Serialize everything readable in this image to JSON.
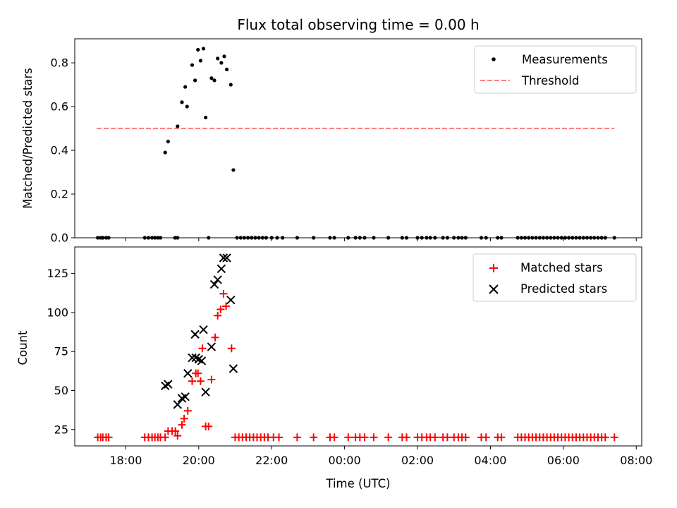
{
  "chart_data": [
    {
      "type": "scatter",
      "title": "Flux total observing time = 0.00 h",
      "ylabel": "Matched/Predicted stars",
      "ylim": [
        0.0,
        0.91
      ],
      "yticks": [
        "0.0",
        "0.2",
        "0.4",
        "0.6",
        "0.8"
      ],
      "ytick_values": [
        0,
        0.2,
        0.4,
        0.6,
        0.8
      ],
      "xlim_hours": [
        16.6,
        32.15
      ],
      "legend": {
        "placement": "top-right",
        "entries": [
          "Measurements",
          "Threshold"
        ]
      },
      "threshold": {
        "name": "Threshold",
        "value": 0.5,
        "x_range_hours": [
          17.2,
          31.4
        ],
        "color": "#ff7f7f"
      },
      "series": [
        {
          "name": "Measurements",
          "color": "#000000",
          "points": [
            [
              17.23,
              0
            ],
            [
              17.31,
              0
            ],
            [
              17.37,
              0
            ],
            [
              17.46,
              0
            ],
            [
              17.53,
              0
            ],
            [
              18.52,
              0
            ],
            [
              18.62,
              0
            ],
            [
              18.72,
              0
            ],
            [
              18.8,
              0
            ],
            [
              18.88,
              0
            ],
            [
              18.95,
              0
            ],
            [
              19.08,
              0.39
            ],
            [
              19.16,
              0.44
            ],
            [
              19.42,
              0.51
            ],
            [
              19.54,
              0.62
            ],
            [
              19.63,
              0.69
            ],
            [
              19.68,
              0.6
            ],
            [
              19.82,
              0.79
            ],
            [
              19.9,
              0.72
            ],
            [
              19.98,
              0.86
            ],
            [
              20.05,
              0.81
            ],
            [
              20.13,
              0.865
            ],
            [
              20.19,
              0.55
            ],
            [
              20.35,
              0.73
            ],
            [
              20.43,
              0.72
            ],
            [
              20.52,
              0.82
            ],
            [
              20.62,
              0.8
            ],
            [
              20.7,
              0.83
            ],
            [
              20.77,
              0.77
            ],
            [
              20.88,
              0.7
            ],
            [
              20.95,
              0.31
            ],
            [
              19.35,
              0
            ],
            [
              19.42,
              0
            ],
            [
              20.27,
              0
            ],
            [
              21.05,
              0
            ],
            [
              21.15,
              0
            ],
            [
              21.25,
              0
            ],
            [
              21.35,
              0
            ],
            [
              21.45,
              0
            ],
            [
              21.55,
              0
            ],
            [
              21.65,
              0
            ],
            [
              21.75,
              0
            ],
            [
              21.85,
              0
            ],
            [
              22.0,
              0
            ],
            [
              22.15,
              0
            ],
            [
              22.3,
              0
            ],
            [
              22.7,
              0
            ],
            [
              23.15,
              0
            ],
            [
              23.6,
              0
            ],
            [
              23.72,
              0
            ],
            [
              24.1,
              0
            ],
            [
              24.3,
              0
            ],
            [
              24.42,
              0
            ],
            [
              24.55,
              0
            ],
            [
              24.8,
              0
            ],
            [
              25.2,
              0
            ],
            [
              25.58,
              0
            ],
            [
              25.7,
              0
            ],
            [
              26.0,
              0
            ],
            [
              26.12,
              0
            ],
            [
              26.25,
              0
            ],
            [
              26.35,
              0
            ],
            [
              26.48,
              0
            ],
            [
              26.7,
              0
            ],
            [
              26.82,
              0
            ],
            [
              27.0,
              0
            ],
            [
              27.12,
              0
            ],
            [
              27.22,
              0
            ],
            [
              27.32,
              0
            ],
            [
              27.75,
              0
            ],
            [
              27.88,
              0
            ],
            [
              28.2,
              0
            ],
            [
              28.3,
              0
            ],
            [
              28.75,
              0
            ],
            [
              28.85,
              0
            ],
            [
              28.95,
              0
            ],
            [
              29.05,
              0
            ],
            [
              29.15,
              0
            ],
            [
              29.25,
              0
            ],
            [
              29.35,
              0
            ],
            [
              29.45,
              0
            ],
            [
              29.55,
              0
            ],
            [
              29.65,
              0
            ],
            [
              29.75,
              0
            ],
            [
              29.85,
              0
            ],
            [
              29.95,
              0
            ],
            [
              30.05,
              0
            ],
            [
              30.15,
              0
            ],
            [
              30.25,
              0
            ],
            [
              30.35,
              0
            ],
            [
              30.45,
              0
            ],
            [
              30.55,
              0
            ],
            [
              30.65,
              0
            ],
            [
              30.75,
              0
            ],
            [
              30.85,
              0
            ],
            [
              30.95,
              0
            ],
            [
              31.05,
              0
            ],
            [
              31.15,
              0
            ],
            [
              31.4,
              0
            ]
          ]
        }
      ]
    },
    {
      "type": "scatter",
      "xlabel": "Time (UTC)",
      "ylabel": "Count",
      "ylim": [
        14.5,
        142
      ],
      "yticks": [
        "25",
        "50",
        "75",
        "100",
        "125"
      ],
      "ytick_values": [
        25,
        50,
        75,
        100,
        125
      ],
      "xlim_hours": [
        16.6,
        32.15
      ],
      "xticks": [
        "18:00",
        "20:00",
        "22:00",
        "00:00",
        "02:00",
        "04:00",
        "06:00",
        "08:00"
      ],
      "xtick_hours": [
        18,
        20,
        22,
        24,
        26,
        28,
        30,
        32
      ],
      "legend": {
        "placement": "top-right",
        "entries": [
          "Matched stars",
          "Predicted stars"
        ]
      },
      "series": [
        {
          "name": "Matched stars",
          "marker": "plus",
          "color": "#ff0000",
          "points": [
            [
              17.23,
              20
            ],
            [
              17.31,
              20
            ],
            [
              17.37,
              20
            ],
            [
              17.46,
              20
            ],
            [
              17.53,
              20
            ],
            [
              18.52,
              20
            ],
            [
              18.62,
              20
            ],
            [
              18.72,
              20
            ],
            [
              18.8,
              20
            ],
            [
              18.88,
              20
            ],
            [
              18.95,
              20
            ],
            [
              19.08,
              20
            ],
            [
              19.16,
              24
            ],
            [
              19.27,
              24
            ],
            [
              19.36,
              24
            ],
            [
              19.42,
              21
            ],
            [
              19.54,
              28
            ],
            [
              19.6,
              32
            ],
            [
              19.7,
              37
            ],
            [
              19.82,
              56
            ],
            [
              19.92,
              61
            ],
            [
              19.98,
              61
            ],
            [
              20.05,
              56
            ],
            [
              20.1,
              77
            ],
            [
              20.19,
              27
            ],
            [
              20.27,
              27
            ],
            [
              20.35,
              57
            ],
            [
              20.45,
              84
            ],
            [
              20.52,
              98
            ],
            [
              20.6,
              102
            ],
            [
              20.68,
              112
            ],
            [
              20.75,
              104
            ],
            [
              20.9,
              77
            ],
            [
              21.0,
              20
            ],
            [
              21.1,
              20
            ],
            [
              21.2,
              20
            ],
            [
              21.3,
              20
            ],
            [
              21.4,
              20
            ],
            [
              21.5,
              20
            ],
            [
              21.6,
              20
            ],
            [
              21.7,
              20
            ],
            [
              21.8,
              20
            ],
            [
              21.9,
              20
            ],
            [
              22.05,
              20
            ],
            [
              22.2,
              20
            ],
            [
              22.7,
              20
            ],
            [
              23.15,
              20
            ],
            [
              23.6,
              20
            ],
            [
              23.72,
              20
            ],
            [
              24.1,
              20
            ],
            [
              24.3,
              20
            ],
            [
              24.42,
              20
            ],
            [
              24.55,
              20
            ],
            [
              24.8,
              20
            ],
            [
              25.2,
              20
            ],
            [
              25.58,
              20
            ],
            [
              25.7,
              20
            ],
            [
              26.0,
              20
            ],
            [
              26.12,
              20
            ],
            [
              26.25,
              20
            ],
            [
              26.35,
              20
            ],
            [
              26.48,
              20
            ],
            [
              26.7,
              20
            ],
            [
              26.82,
              20
            ],
            [
              27.0,
              20
            ],
            [
              27.12,
              20
            ],
            [
              27.22,
              20
            ],
            [
              27.32,
              20
            ],
            [
              27.75,
              20
            ],
            [
              27.88,
              20
            ],
            [
              28.2,
              20
            ],
            [
              28.3,
              20
            ],
            [
              28.75,
              20
            ],
            [
              28.85,
              20
            ],
            [
              28.95,
              20
            ],
            [
              29.05,
              20
            ],
            [
              29.15,
              20
            ],
            [
              29.25,
              20
            ],
            [
              29.35,
              20
            ],
            [
              29.45,
              20
            ],
            [
              29.55,
              20
            ],
            [
              29.65,
              20
            ],
            [
              29.75,
              20
            ],
            [
              29.85,
              20
            ],
            [
              29.95,
              20
            ],
            [
              30.05,
              20
            ],
            [
              30.15,
              20
            ],
            [
              30.25,
              20
            ],
            [
              30.35,
              20
            ],
            [
              30.45,
              20
            ],
            [
              30.55,
              20
            ],
            [
              30.65,
              20
            ],
            [
              30.75,
              20
            ],
            [
              30.85,
              20
            ],
            [
              30.95,
              20
            ],
            [
              31.05,
              20
            ],
            [
              31.15,
              20
            ],
            [
              31.4,
              20
            ]
          ]
        },
        {
          "name": "Predicted stars",
          "marker": "x",
          "color": "#000000",
          "points": [
            [
              19.08,
              53
            ],
            [
              19.16,
              54
            ],
            [
              19.42,
              41
            ],
            [
              19.54,
              45
            ],
            [
              19.63,
              46
            ],
            [
              19.7,
              61
            ],
            [
              19.82,
              71
            ],
            [
              19.9,
              86
            ],
            [
              19.92,
              71
            ],
            [
              20.0,
              70
            ],
            [
              20.08,
              69
            ],
            [
              20.13,
              89
            ],
            [
              20.19,
              49
            ],
            [
              20.35,
              78
            ],
            [
              20.43,
              118
            ],
            [
              20.52,
              121
            ],
            [
              20.62,
              128
            ],
            [
              20.68,
              135
            ],
            [
              20.77,
              135
            ],
            [
              20.88,
              108
            ],
            [
              20.95,
              64
            ]
          ]
        }
      ]
    }
  ]
}
